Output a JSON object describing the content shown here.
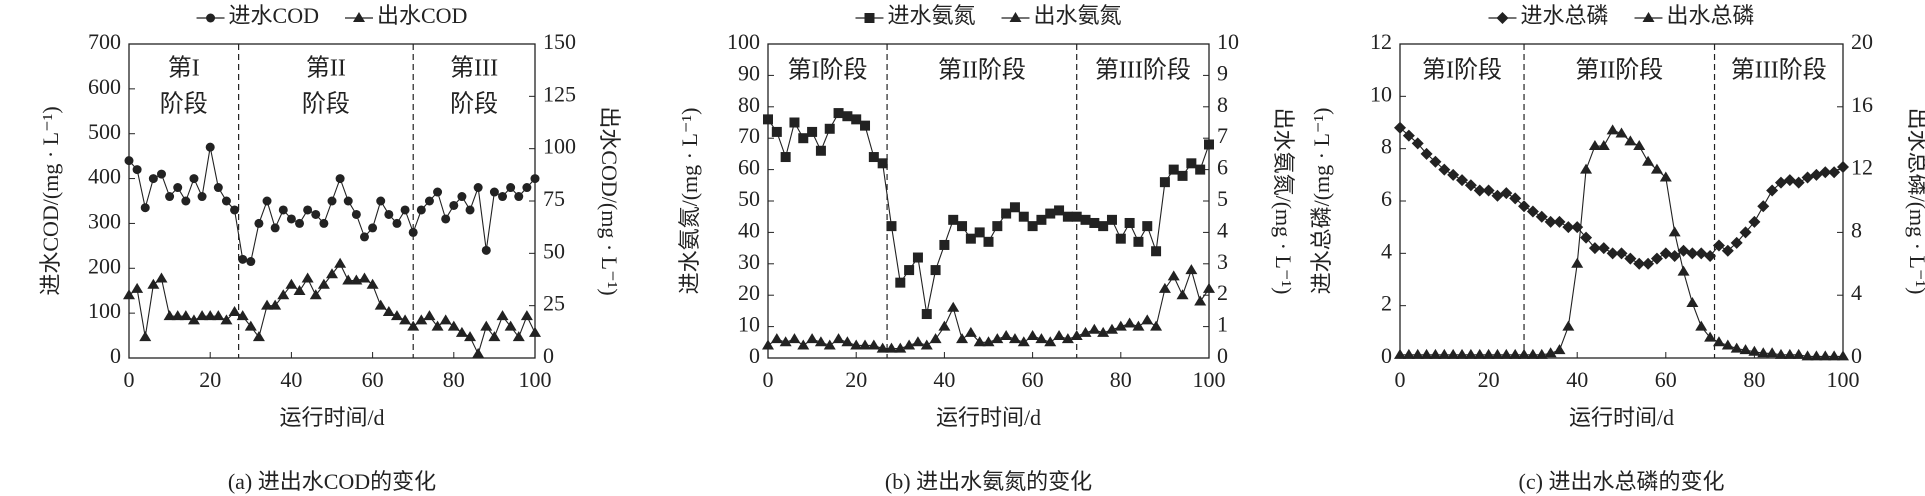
{
  "chart_data": [
    {
      "type": "line",
      "caption": "(a) 进出水COD的变化",
      "xlabel": "运行时间/d",
      "ylabel": "进水COD/(mg · L⁻¹)",
      "y2label": "出水COD/(mg · L⁻¹)",
      "x": [
        0,
        2,
        4,
        6,
        8,
        10,
        12,
        14,
        16,
        18,
        20,
        22,
        24,
        26,
        28,
        30,
        32,
        34,
        36,
        38,
        40,
        42,
        44,
        46,
        48,
        50,
        52,
        54,
        56,
        58,
        60,
        62,
        64,
        66,
        68,
        70,
        72,
        74,
        76,
        78,
        80,
        82,
        84,
        86,
        88,
        90,
        92,
        94,
        96,
        98,
        100
      ],
      "xlim": [
        0,
        100
      ],
      "xticks": [
        0,
        20,
        40,
        60,
        80,
        100
      ],
      "ylim": [
        0,
        700
      ],
      "yticks": [
        0,
        100,
        200,
        300,
        400,
        500,
        600,
        700
      ],
      "y2lim": [
        0,
        150
      ],
      "y2ticks": [
        0,
        25,
        50,
        75,
        100,
        125,
        150
      ],
      "dividers": [
        27,
        70
      ],
      "annotations": [
        [
          "第I",
          "阶段"
        ],
        [
          "第II",
          "阶段"
        ],
        [
          "第III",
          "阶段"
        ]
      ],
      "series": [
        {
          "name": "进水COD",
          "color": "#222222",
          "marker": "circle",
          "values": [
            440,
            420,
            335,
            400,
            410,
            360,
            380,
            350,
            400,
            360,
            470,
            380,
            350,
            330,
            220,
            215,
            300,
            350,
            290,
            330,
            310,
            300,
            330,
            320,
            300,
            350,
            400,
            350,
            320,
            270,
            290,
            350,
            320,
            300,
            330,
            280,
            330,
            350,
            370,
            310,
            340,
            360,
            330,
            380,
            240,
            370,
            360,
            380,
            360,
            380,
            400
          ]
        },
        {
          "name": "出水COD",
          "color": "#222222",
          "marker": "triangle",
          "axis": "y2",
          "values": [
            30,
            33,
            10,
            35,
            38,
            20,
            20,
            20,
            18,
            20,
            20,
            20,
            18,
            22,
            20,
            15,
            10,
            25,
            25,
            30,
            35,
            32,
            38,
            30,
            35,
            40,
            45,
            37,
            37,
            38,
            35,
            25,
            22,
            20,
            18,
            15,
            18,
            20,
            15,
            18,
            15,
            12,
            10,
            2,
            15,
            10,
            20,
            15,
            10,
            20,
            12
          ]
        }
      ]
    },
    {
      "type": "line",
      "caption": "(b) 进出水氨氮的变化",
      "xlabel": "运行时间/d",
      "ylabel": "进水氨氮/(mg · L⁻¹)",
      "y2label": "出水氨氮/(mg · L⁻¹)",
      "x": [
        0,
        2,
        4,
        6,
        8,
        10,
        12,
        14,
        16,
        18,
        20,
        22,
        24,
        26,
        28,
        30,
        32,
        34,
        36,
        38,
        40,
        42,
        44,
        46,
        48,
        50,
        52,
        54,
        56,
        58,
        60,
        62,
        64,
        66,
        68,
        70,
        72,
        74,
        76,
        78,
        80,
        82,
        84,
        86,
        88,
        90,
        92,
        94,
        96,
        98,
        100
      ],
      "xlim": [
        0,
        100
      ],
      "xticks": [
        0,
        20,
        40,
        60,
        80,
        100
      ],
      "ylim": [
        0,
        100
      ],
      "yticks": [
        0,
        10,
        20,
        30,
        40,
        50,
        60,
        70,
        80,
        90,
        100
      ],
      "y2lim": [
        0,
        10
      ],
      "y2ticks": [
        0,
        1,
        2,
        3,
        4,
        5,
        6,
        7,
        8,
        9,
        10
      ],
      "dividers": [
        27,
        70
      ],
      "annotations": [
        "第I阶段",
        "第II阶段",
        "第III阶段"
      ],
      "series": [
        {
          "name": "进水氨氮",
          "color": "#222222",
          "marker": "square",
          "values": [
            76,
            72,
            64,
            75,
            70,
            72,
            66,
            73,
            78,
            77,
            76,
            74,
            64,
            62,
            42,
            24,
            28,
            32,
            14,
            28,
            36,
            44,
            42,
            38,
            40,
            37,
            42,
            46,
            48,
            45,
            42,
            44,
            46,
            47,
            45,
            45,
            44,
            43,
            42,
            44,
            38,
            43,
            37,
            42,
            34,
            56,
            60,
            58,
            62,
            60,
            68
          ]
        },
        {
          "name": "出水氨氮",
          "color": "#222222",
          "marker": "triangle",
          "axis": "y2",
          "values": [
            0.4,
            0.6,
            0.5,
            0.6,
            0.4,
            0.6,
            0.5,
            0.4,
            0.6,
            0.5,
            0.4,
            0.4,
            0.4,
            0.3,
            0.3,
            0.3,
            0.4,
            0.5,
            0.4,
            0.6,
            1.0,
            1.6,
            0.6,
            0.8,
            0.5,
            0.5,
            0.6,
            0.7,
            0.6,
            0.5,
            0.7,
            0.6,
            0.5,
            0.7,
            0.6,
            0.7,
            0.8,
            0.9,
            0.8,
            0.9,
            1.0,
            1.1,
            1.0,
            1.2,
            1.0,
            2.2,
            2.6,
            2.0,
            2.8,
            1.8,
            2.2
          ]
        }
      ]
    },
    {
      "type": "line",
      "caption": "(c) 进出水总磷的变化",
      "xlabel": "运行时间/d",
      "ylabel": "进水总磷/(mg · L⁻¹)",
      "y2label": "出水总磷/(mg · L⁻¹)",
      "x": [
        0,
        2,
        4,
        6,
        8,
        10,
        12,
        14,
        16,
        18,
        20,
        22,
        24,
        26,
        28,
        30,
        32,
        34,
        36,
        38,
        40,
        42,
        44,
        46,
        48,
        50,
        52,
        54,
        56,
        58,
        60,
        62,
        64,
        66,
        68,
        70,
        72,
        74,
        76,
        78,
        80,
        82,
        84,
        86,
        88,
        90,
        92,
        94,
        96,
        98,
        100
      ],
      "xlim": [
        0,
        100
      ],
      "xticks": [
        0,
        20,
        40,
        60,
        80,
        100
      ],
      "ylim": [
        0,
        12
      ],
      "yticks": [
        0,
        2,
        4,
        6,
        8,
        10,
        12
      ],
      "y2lim": [
        0,
        20
      ],
      "y2ticks": [
        0,
        4,
        8,
        12,
        16,
        20
      ],
      "dividers": [
        28,
        71
      ],
      "annotations": [
        "第I阶段",
        "第II阶段",
        "第III阶段"
      ],
      "series": [
        {
          "name": "进水总磷",
          "color": "#222222",
          "marker": "diamond",
          "values": [
            8.8,
            8.5,
            8.2,
            7.8,
            7.5,
            7.2,
            7.0,
            6.8,
            6.6,
            6.4,
            6.4,
            6.2,
            6.3,
            6.1,
            5.8,
            5.6,
            5.4,
            5.2,
            5.2,
            5.0,
            5.0,
            4.6,
            4.2,
            4.2,
            4.0,
            4.0,
            3.8,
            3.6,
            3.6,
            3.8,
            4.0,
            3.9,
            4.1,
            4.0,
            4.0,
            3.9,
            4.3,
            4.1,
            4.4,
            4.8,
            5.2,
            5.8,
            6.4,
            6.7,
            6.8,
            6.7,
            6.9,
            7.0,
            7.1,
            7.1,
            7.3
          ]
        },
        {
          "name": "出水总磷",
          "color": "#222222",
          "marker": "triangle",
          "axis": "y2",
          "values": [
            0.2,
            0.2,
            0.2,
            0.2,
            0.2,
            0.2,
            0.2,
            0.2,
            0.2,
            0.2,
            0.2,
            0.2,
            0.2,
            0.2,
            0.2,
            0.2,
            0.2,
            0.3,
            0.5,
            2,
            6,
            12,
            13.5,
            13.5,
            14.5,
            14.3,
            13.8,
            13.5,
            12.5,
            12,
            11.5,
            8,
            5.5,
            3.5,
            2,
            1.3,
            1,
            0.8,
            0.6,
            0.5,
            0.4,
            0.3,
            0.3,
            0.2,
            0.2,
            0.2,
            0.1,
            0.1,
            0.1,
            0.1,
            0.1
          ]
        }
      ]
    }
  ]
}
